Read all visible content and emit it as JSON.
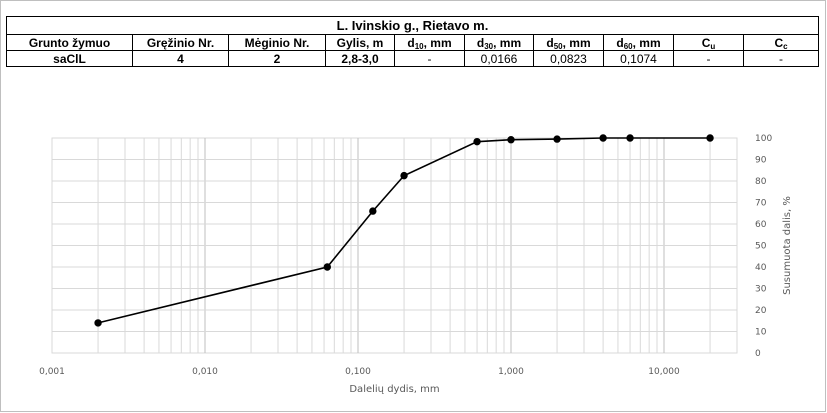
{
  "header": {
    "title": "L. Ivinskio g., Rietavo m.",
    "columns": [
      {
        "text": "Grunto žymuo"
      },
      {
        "text": "Gręžinio Nr."
      },
      {
        "text": "Mėginio Nr."
      },
      {
        "text": "Gylis, m"
      },
      {
        "text": "d",
        "sub": "10",
        "suffix": ", mm"
      },
      {
        "text": "d",
        "sub": "30",
        "suffix": ", mm"
      },
      {
        "text": "d",
        "sub": "50",
        "suffix": ", mm"
      },
      {
        "text": "d",
        "sub": "60",
        "suffix": ", mm"
      },
      {
        "text": "C",
        "sub": "u",
        "suffix": ""
      },
      {
        "text": "C",
        "sub": "c",
        "suffix": ""
      }
    ],
    "row": [
      "saClL",
      "4",
      "2",
      "2,8-3,0",
      "-",
      "0,0166",
      "0,0823",
      "0,1074",
      "-",
      "-"
    ]
  },
  "chart_data": {
    "type": "line",
    "xscale": "log",
    "xlabel": "Dalelių dydis, mm",
    "ylabel": "Susumuota dalis, %",
    "xlim": [
      0.001,
      30
    ],
    "ylim": [
      0,
      100
    ],
    "x_ticks": [
      0.001,
      0.01,
      0.1,
      1,
      10
    ],
    "x_tick_labels": [
      "0,001",
      "0,010",
      "0,100",
      "1,000",
      "10,000"
    ],
    "y_ticks": [
      0,
      10,
      20,
      30,
      40,
      50,
      60,
      70,
      80,
      90,
      100
    ],
    "y_tick_labels": [
      "0",
      "10",
      "20",
      "30",
      "40",
      "50",
      "60",
      "70",
      "80",
      "90",
      "100"
    ],
    "grid": true,
    "y_axis_position": "right",
    "series": [
      {
        "color": "#000000",
        "x": [
          0.002,
          0.063,
          0.125,
          0.2,
          0.6,
          1.0,
          2.0,
          4.0,
          6.0,
          20.0
        ],
        "y": [
          14,
          40,
          66,
          82.5,
          98.3,
          99.2,
          99.5,
          100,
          100,
          100
        ]
      }
    ]
  }
}
